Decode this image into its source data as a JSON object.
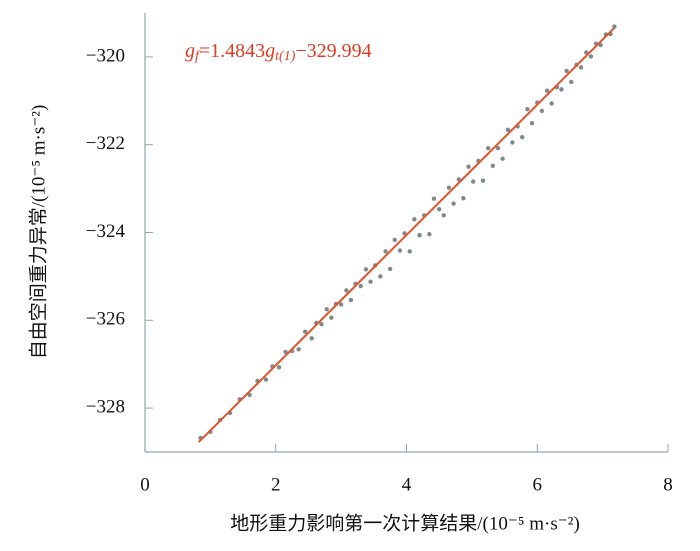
{
  "chart_data": {
    "type": "scatter",
    "xlabel": "地形重力影响第一次计算结果/(10⁻⁵ m·s⁻²)",
    "ylabel": "自由空间重力异常/(10⁻⁵ m·s⁻²)",
    "equation": {
      "lhs": "g",
      "lhs_sub": "f",
      "mid": "=1.4843",
      "mid_var": "g",
      "mid_sub": "t(1)",
      "rhs": "−329.994"
    },
    "xlim": [
      0,
      8
    ],
    "ylim": [
      -329,
      -319
    ],
    "xticks": [
      0,
      2,
      4,
      6,
      8
    ],
    "yticks": [
      {
        "value": -320,
        "label": "−320"
      },
      {
        "value": -322,
        "label": "−322"
      },
      {
        "value": -324,
        "label": "−324"
      },
      {
        "value": -326,
        "label": "−326"
      },
      {
        "value": -328,
        "label": "−328"
      }
    ],
    "series": [
      {
        "type": "scatter",
        "color": "#7d8b88",
        "x": [
          0.85,
          1.0,
          1.15,
          1.3,
          1.45,
          1.6,
          1.72,
          1.85,
          1.95,
          2.05,
          2.15,
          2.25,
          2.35,
          2.45,
          2.55,
          2.62,
          2.7,
          2.78,
          2.85,
          2.92,
          3.0,
          3.08,
          3.15,
          3.22,
          3.3,
          3.38,
          3.45,
          3.52,
          3.6,
          3.68,
          3.75,
          3.82,
          3.9,
          3.97,
          4.05,
          4.12,
          4.2,
          4.27,
          4.35,
          4.42,
          4.5,
          4.57,
          4.65,
          4.72,
          4.8,
          4.87,
          4.95,
          5.02,
          5.1,
          5.17,
          5.25,
          5.32,
          5.4,
          5.47,
          5.55,
          5.62,
          5.7,
          5.77,
          5.85,
          5.92,
          6.0,
          6.07,
          6.15,
          6.22,
          6.3,
          6.37,
          6.45,
          6.52,
          6.6,
          6.67,
          6.75,
          6.82,
          6.9,
          6.97,
          7.05,
          7.12,
          7.18
        ],
        "y": [
          -328.68,
          -328.54,
          -328.27,
          -328.11,
          -327.8,
          -327.7,
          -327.38,
          -327.35,
          -327.05,
          -327.07,
          -326.72,
          -326.7,
          -326.66,
          -326.26,
          -326.41,
          -326.06,
          -326.09,
          -325.75,
          -325.94,
          -325.63,
          -325.64,
          -325.32,
          -325.54,
          -325.17,
          -325.22,
          -324.84,
          -325.12,
          -324.75,
          -325.0,
          -324.43,
          -324.83,
          -324.17,
          -324.41,
          -324.02,
          -324.43,
          -323.7,
          -324.06,
          -323.61,
          -324.04,
          -323.23,
          -323.47,
          -323.61,
          -322.98,
          -323.34,
          -322.79,
          -323.22,
          -322.5,
          -322.84,
          -322.37,
          -322.82,
          -322.08,
          -322.48,
          -322.08,
          -322.32,
          -321.66,
          -321.95,
          -321.58,
          -321.83,
          -321.19,
          -321.51,
          -321.04,
          -321.23,
          -320.77,
          -321.06,
          -320.69,
          -320.74,
          -320.32,
          -320.57,
          -320.18,
          -320.24,
          -319.9,
          -319.99,
          -319.7,
          -319.73,
          -319.49,
          -319.48,
          -319.31
        ]
      },
      {
        "type": "line",
        "color": "#e4522c",
        "x": [
          0.82,
          7.18
        ],
        "y": [
          -328.777,
          -319.337
        ]
      }
    ]
  }
}
